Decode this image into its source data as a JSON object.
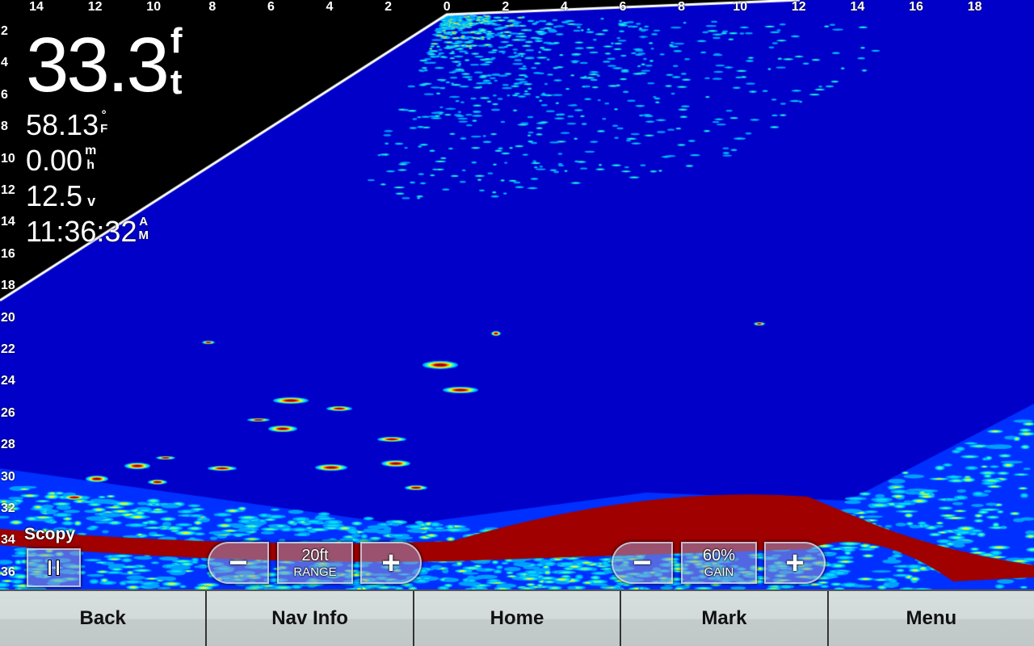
{
  "top_axis": [
    "14",
    "12",
    "10",
    "8",
    "6",
    "4",
    "2",
    "0",
    "2",
    "4",
    "6",
    "8",
    "10",
    "12",
    "14",
    "16",
    "18"
  ],
  "depth_axis": [
    "2",
    "4",
    "6",
    "8",
    "10",
    "12",
    "14",
    "16",
    "18",
    "20",
    "22",
    "24",
    "26",
    "28",
    "30",
    "32",
    "34",
    "36"
  ],
  "readouts": {
    "depth": {
      "value": "33.3",
      "unit_top": "f",
      "unit_bottom": "t"
    },
    "water_temp": {
      "value": "58.13",
      "unit_top": "°",
      "unit_bottom": "F"
    },
    "speed": {
      "value": "0.00",
      "unit_top": "m",
      "unit_bottom": "h"
    },
    "voltage": {
      "value": "12.5",
      "unit": "v"
    },
    "time": {
      "value": "11:36:32",
      "unit_top": "A",
      "unit_bottom": "M"
    }
  },
  "mode_label": "Scopy",
  "pause_icon": "pause-icon",
  "range": {
    "value": "20ft",
    "label": "RANGE",
    "minus": "−",
    "plus": "+"
  },
  "gain": {
    "value": "60%",
    "label": "GAIN",
    "minus": "−",
    "plus": "+"
  },
  "softkeys": [
    "Back",
    "Nav Info",
    "Home",
    "Mark",
    "Menu"
  ],
  "colors": {
    "water": "#0000c8",
    "strong_return": "#a00000",
    "background": "#000000"
  }
}
